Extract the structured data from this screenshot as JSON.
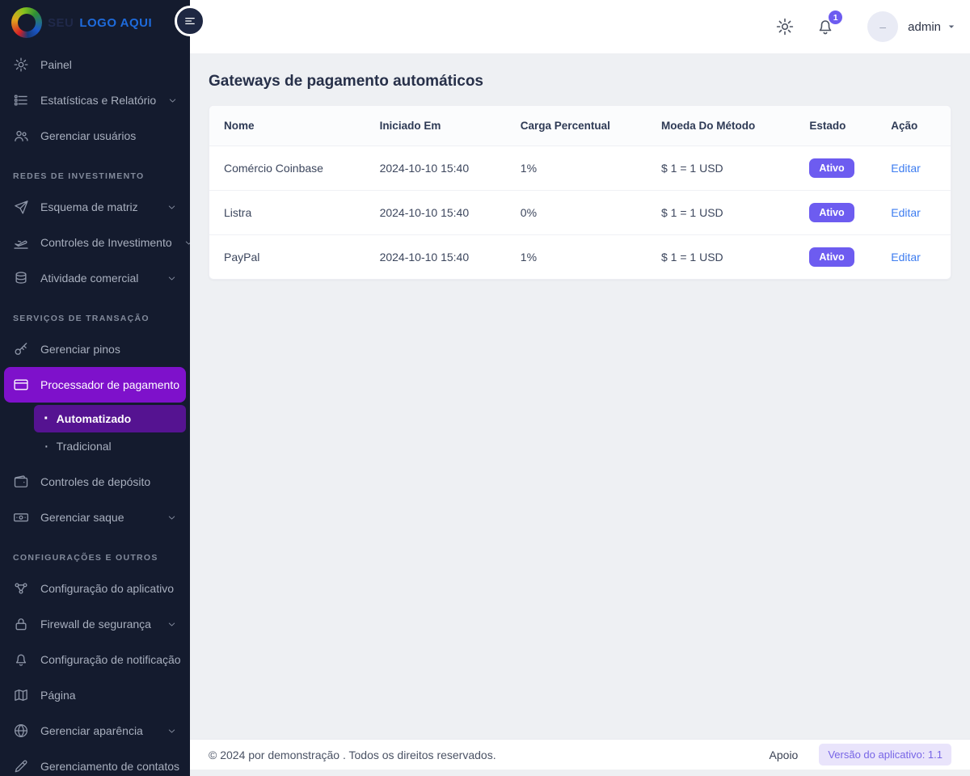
{
  "brand": {
    "name_dark": "SEU",
    "name_accent": "LOGO AQUI",
    "logo_icon": "color-swirl-icon"
  },
  "topbar": {
    "settings_icon": "gear-icon",
    "notifications_icon": "bell-icon",
    "notification_count": "1",
    "avatar_placeholder": "–",
    "user_label": "admin"
  },
  "sidebar": {
    "toggle_icon": "hamburger-icon",
    "groups": [
      {
        "header": null,
        "items": [
          {
            "label": "Painel",
            "icon": "gear"
          },
          {
            "label": "Estatísticas e Relatório",
            "icon": "list",
            "chevron": "down"
          },
          {
            "label": "Gerenciar usuários",
            "icon": "users"
          }
        ]
      },
      {
        "header": "REDES DE INVESTIMENTO",
        "items": [
          {
            "label": "Esquema de matriz",
            "icon": "send",
            "chevron": "down"
          },
          {
            "label": "Controles de Investimento",
            "icon": "plane",
            "chevron": "down"
          },
          {
            "label": "Atividade comercial",
            "icon": "coins",
            "chevron": "down"
          }
        ]
      },
      {
        "header": "SERVIÇOS DE TRANSAÇÃO",
        "items": [
          {
            "label": "Gerenciar pinos",
            "icon": "key"
          },
          {
            "label": "Processador de pagamento",
            "icon": "credit-card",
            "chevron": "up",
            "active": true,
            "children": [
              {
                "label": "Automatizado",
                "active": true
              },
              {
                "label": "Tradicional",
                "active": false
              }
            ]
          },
          {
            "label": "Controles de depósito",
            "icon": "wallet"
          },
          {
            "label": "Gerenciar saque",
            "icon": "banknote",
            "chevron": "down"
          }
        ]
      },
      {
        "header": "CONFIGURAÇÕES E OUTROS",
        "items": [
          {
            "label": "Configuração do aplicativo",
            "icon": "nodes"
          },
          {
            "label": "Firewall de segurança",
            "icon": "lock",
            "chevron": "down"
          },
          {
            "label": "Configuração de notificação",
            "icon": "bell",
            "chevron": "down"
          },
          {
            "label": "Página",
            "icon": "map"
          },
          {
            "label": "Gerenciar aparência",
            "icon": "globe",
            "chevron": "down"
          },
          {
            "label": "Gerenciamento de contatos",
            "icon": "pencil",
            "chevron": "down"
          }
        ]
      }
    ]
  },
  "page": {
    "title": "Gateways de pagamento automáticos"
  },
  "table": {
    "columns": [
      "Nome",
      "Iniciado Em",
      "Carga Percentual",
      "Moeda Do Método",
      "Estado",
      "Ação"
    ],
    "rows": [
      {
        "name": "Comércio Coinbase",
        "started": "2024-10-10 15:40",
        "charge": "1%",
        "currency": "$ 1 = 1 USD",
        "status": "Ativo",
        "action": "Editar"
      },
      {
        "name": "Listra",
        "started": "2024-10-10 15:40",
        "charge": "0%",
        "currency": "$ 1 = 1 USD",
        "status": "Ativo",
        "action": "Editar"
      },
      {
        "name": "PayPal",
        "started": "2024-10-10 15:40",
        "charge": "1%",
        "currency": "$ 1 = 1 USD",
        "status": "Ativo",
        "action": "Editar"
      }
    ]
  },
  "footer": {
    "copyright": "© 2024 por demonstração . Todos os direitos reservados.",
    "support": "Apoio",
    "version": "Versão do aplicativo: 1.1"
  },
  "colors": {
    "sidebar": "#141b2e",
    "accent": "#7e11cb",
    "accent_dark": "#551391",
    "badge": "#6d5cf0",
    "link": "#3e7df0"
  }
}
